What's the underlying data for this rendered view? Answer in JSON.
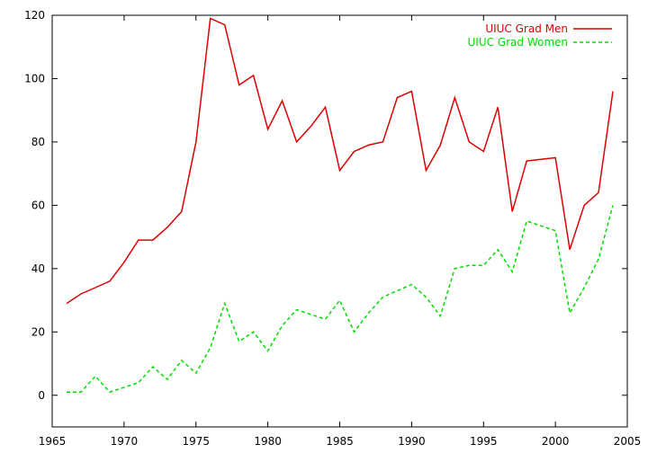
{
  "chart_data": {
    "type": "line",
    "title": "",
    "xlabel": "",
    "ylabel": "",
    "xlim": [
      1965,
      2005
    ],
    "ylim": [
      -10,
      120
    ],
    "x_ticks": [
      1965,
      1970,
      1975,
      1980,
      1985,
      1990,
      1995,
      2000,
      2005
    ],
    "y_ticks": [
      0,
      20,
      40,
      60,
      80,
      100,
      120
    ],
    "grid": false,
    "legend_position": "top-right",
    "series": [
      {
        "name": "UIUC Grad Men",
        "color": "#dd0000",
        "dash": "solid",
        "x": [
          1966,
          1967,
          1968,
          1969,
          1970,
          1971,
          1972,
          1973,
          1974,
          1975,
          1976,
          1977,
          1978,
          1979,
          1980,
          1981,
          1982,
          1983,
          1984,
          1985,
          1986,
          1987,
          1988,
          1989,
          1990,
          1991,
          1992,
          1993,
          1994,
          1995,
          1996,
          1997,
          1998,
          1999,
          2000,
          2001,
          2002,
          2003,
          2004
        ],
        "y": [
          29,
          32,
          34,
          36,
          42,
          49,
          49,
          53,
          58,
          80,
          119,
          117,
          98,
          101,
          84,
          93,
          80,
          85,
          91,
          71,
          77,
          79,
          80,
          94,
          96,
          71,
          79,
          94,
          80,
          77,
          91,
          58,
          74,
          74.5,
          75,
          46,
          60,
          64,
          96
        ]
      },
      {
        "name": "UIUC Grad Women",
        "color": "#00dd00",
        "dash": "dashed",
        "x": [
          1966,
          1967,
          1968,
          1969,
          1970,
          1971,
          1972,
          1973,
          1974,
          1975,
          1976,
          1977,
          1978,
          1979,
          1980,
          1981,
          1982,
          1983,
          1984,
          1985,
          1986,
          1987,
          1988,
          1989,
          1990,
          1991,
          1992,
          1993,
          1994,
          1995,
          1996,
          1997,
          1998,
          1999,
          2000,
          2001,
          2002,
          2003,
          2004
        ],
        "y": [
          1,
          1,
          6,
          1,
          2.5,
          4,
          9,
          5,
          11,
          7,
          15,
          29,
          17,
          20,
          14,
          22,
          27,
          25.5,
          24,
          30,
          20,
          26,
          31,
          33,
          35,
          31,
          25,
          40,
          41,
          41,
          46,
          39,
          55,
          53.5,
          52,
          26,
          34,
          43,
          60
        ]
      }
    ]
  }
}
